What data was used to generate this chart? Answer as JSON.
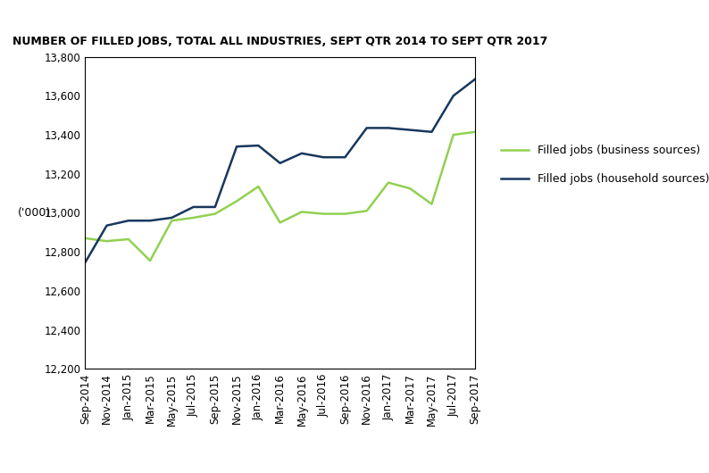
{
  "title": "NUMBER OF FILLED JOBS, TOTAL ALL INDUSTRIES, SEPT QTR 2014 TO SEPT QTR 2017",
  "ylabel": "('000)",
  "xlabels": [
    "Sep-2014",
    "Nov-2014",
    "Jan-2015",
    "Mar-2015",
    "May-2015",
    "Jul-2015",
    "Sep-2015",
    "Nov-2015",
    "Jan-2016",
    "Mar-2016",
    "May-2016",
    "Jul-2016",
    "Sep-2016",
    "Nov-2016",
    "Jan-2017",
    "Mar-2017",
    "May-2017",
    "Jul-2017",
    "Sep-2017"
  ],
  "business": [
    12870,
    12855,
    12865,
    12755,
    12960,
    12975,
    12995,
    13060,
    13135,
    12950,
    13005,
    12995,
    12995,
    13010,
    13155,
    13125,
    13045,
    13400,
    13415
  ],
  "household": [
    12745,
    12935,
    12960,
    12960,
    12975,
    13030,
    13030,
    13340,
    13345,
    13255,
    13305,
    13285,
    13285,
    13435,
    13435,
    13425,
    13415,
    13600,
    13685
  ],
  "business_color": "#92d050",
  "household_color": "#17375e",
  "ylim_min": 12200,
  "ylim_max": 13800,
  "ytick_step": 200,
  "legend_business": "Filled jobs (business sources)",
  "legend_household": "Filled jobs (household sources)"
}
